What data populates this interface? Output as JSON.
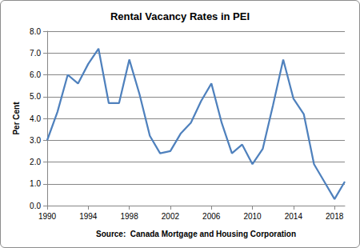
{
  "chart_data": {
    "type": "line",
    "title": "Rental Vacancy Rates in PEI",
    "ylabel": "Per Cent",
    "source": "Source:  Canada Mortgage and Housing Corporation",
    "x": [
      1990,
      1991,
      1992,
      1993,
      1994,
      1995,
      1996,
      1997,
      1998,
      1999,
      2000,
      2001,
      2002,
      2003,
      2004,
      2005,
      2006,
      2007,
      2008,
      2009,
      2010,
      2011,
      2012,
      2013,
      2014,
      2015,
      2016,
      2017,
      2018,
      2019
    ],
    "values": [
      3.0,
      4.3,
      6.0,
      5.6,
      6.5,
      7.2,
      4.7,
      4.7,
      6.7,
      5.1,
      3.2,
      2.4,
      2.5,
      3.3,
      3.8,
      4.8,
      5.6,
      3.8,
      2.4,
      2.8,
      1.9,
      2.6,
      4.6,
      6.7,
      4.9,
      4.2,
      1.9,
      1.1,
      0.3,
      1.1
    ],
    "color": "#4f81bd",
    "xlim": [
      1990,
      2019
    ],
    "xticks": [
      1990,
      1994,
      1998,
      2002,
      2006,
      2010,
      2014,
      2018
    ],
    "ylim": [
      0,
      8
    ],
    "yticks": [
      {
        "value": 0,
        "label": "0.0"
      },
      {
        "value": 1,
        "label": "1.0"
      },
      {
        "value": 2,
        "label": "2.0"
      },
      {
        "value": 3,
        "label": "3.0"
      },
      {
        "value": 4,
        "label": "4.0"
      },
      {
        "value": 5,
        "label": "5.0"
      },
      {
        "value": 6,
        "label": "6.0"
      },
      {
        "value": 7,
        "label": "7.0"
      },
      {
        "value": 8,
        "label": "8.0"
      }
    ],
    "grid": true
  }
}
